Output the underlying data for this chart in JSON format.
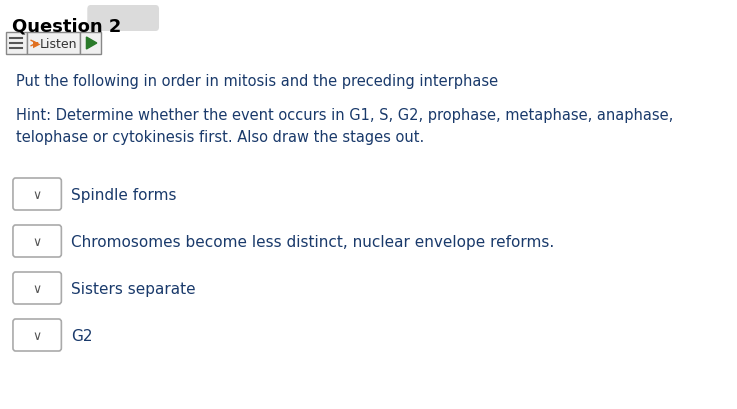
{
  "title": "Question 2",
  "title_color": "#000000",
  "title_fontsize": 13,
  "listen_label": "Listen",
  "instruction_text": "Put the following in order in mitosis and the preceding interphase",
  "instruction_color": "#1a3a6b",
  "hint_text": "Hint: Determine whether the event occurs in G1, S, G2, prophase, metaphase, anaphase,\ntelophase or cytokinesis first. Also draw the stages out.",
  "hint_color": "#1a3a6b",
  "items": [
    "Spindle forms",
    "Chromosomes become less distinct, nuclear envelope reforms.",
    "Sisters separate",
    "G2"
  ],
  "item_color": "#1a3a6b",
  "item_fontsize": 11,
  "dropdown_box_color": "#ffffff",
  "dropdown_border_color": "#aaaaaa",
  "background_color": "#ffffff"
}
